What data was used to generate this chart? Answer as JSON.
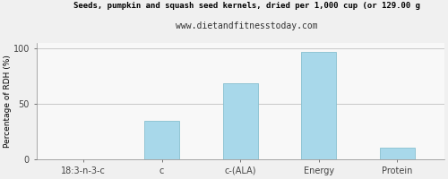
{
  "title": "Seeds, pumpkin and squash seed kernels, dried per 1,000 cup (or 129.00 g",
  "subtitle": "www.dietandfitnesstoday.com",
  "categories": [
    "18:3-n-3-c",
    "c",
    "c-(ALA)",
    "Energy",
    "Protein"
  ],
  "values": [
    0,
    35,
    69,
    97,
    11
  ],
  "bar_color": "#a8d8ea",
  "bar_edge_color": "#88c0d0",
  "ylabel": "Percentage of RDH (%)",
  "ylim": [
    0,
    105
  ],
  "yticks": [
    0,
    50,
    100
  ],
  "title_fontsize": 6.5,
  "subtitle_fontsize": 7,
  "ylabel_fontsize": 6.5,
  "tick_fontsize": 7,
  "bg_color": "#f0f0f0",
  "plot_bg_color": "#f8f8f8",
  "grid_color": "#c0c0c0",
  "spine_color": "#888888"
}
